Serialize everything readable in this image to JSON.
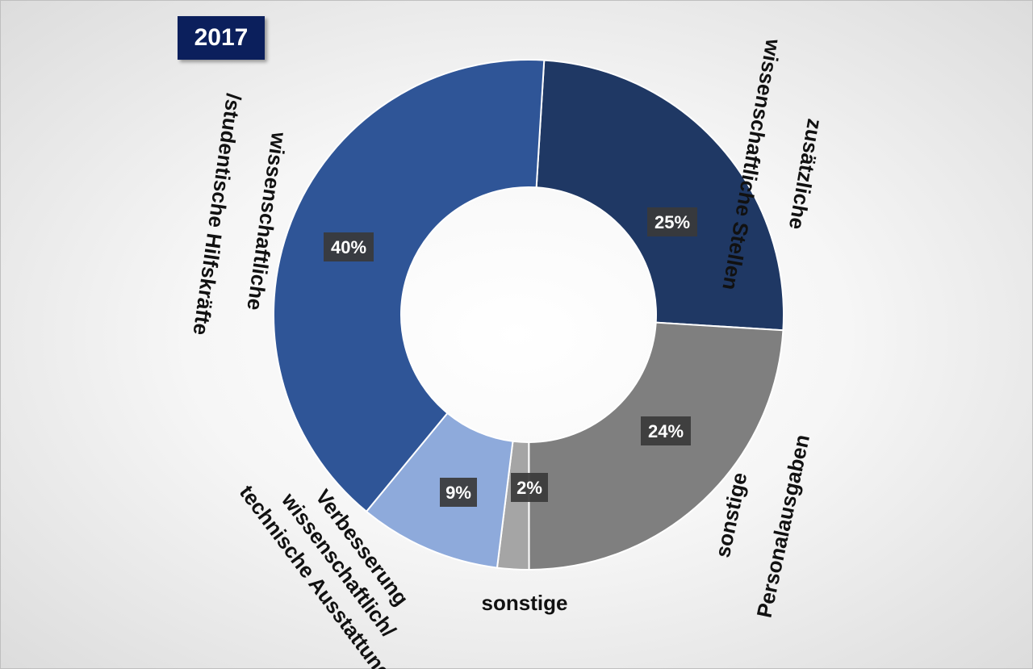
{
  "year_badge": "2017",
  "chart_data": {
    "type": "pie",
    "donut": true,
    "legend": "none",
    "title": "",
    "slices": [
      {
        "category_lines": [
          "zusätzliche",
          "wissenschaftliche Stellen"
        ],
        "value": 25,
        "label": "25%",
        "color": "#1f3864"
      },
      {
        "category_lines": [
          "sonstige",
          "Personalausgaben"
        ],
        "value": 24,
        "label": "24%",
        "color": "#7f7f7f"
      },
      {
        "category_lines": [
          "sonstige"
        ],
        "value": 2,
        "label": "2%",
        "color": "#a5a5a5"
      },
      {
        "category_lines": [
          "Verbesserung",
          "wissenschaftlich/",
          "technische Ausstattung"
        ],
        "value": 9,
        "label": "9%",
        "color": "#8eaadb"
      },
      {
        "category_lines": [
          "wissenschaftliche",
          "/studentische Hilfskräfte"
        ],
        "value": 40,
        "label": "40%",
        "color": "#2f5597"
      }
    ]
  }
}
